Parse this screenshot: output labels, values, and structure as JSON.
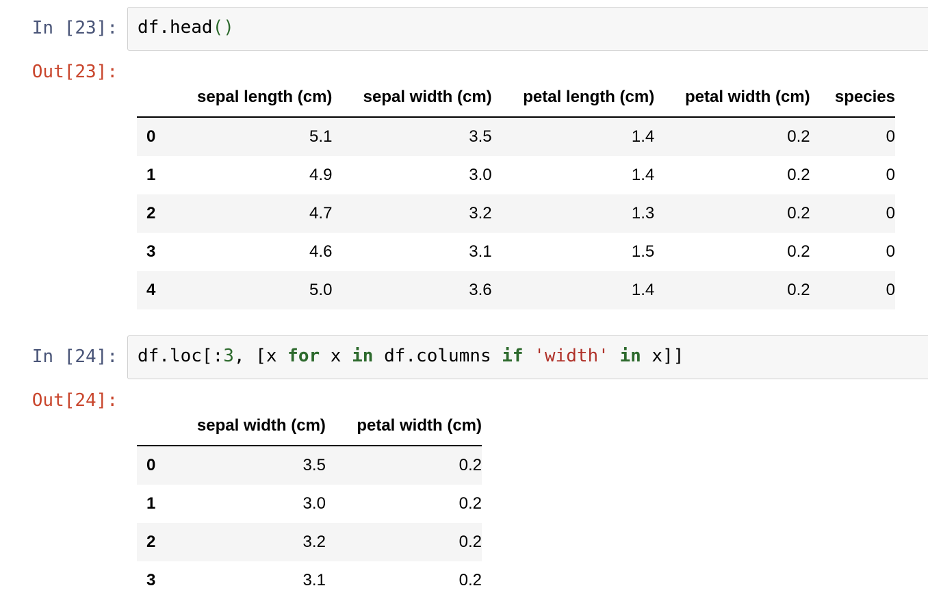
{
  "cells": [
    {
      "in_prompt": "In [23]:",
      "out_prompt": "Out[23]:",
      "code_tokens": [
        {
          "t": "df.head",
          "c": ""
        },
        {
          "t": "()",
          "c": "paren"
        }
      ],
      "table": {
        "columns": [
          "sepal length (cm)",
          "sepal width (cm)",
          "petal length (cm)",
          "petal width (cm)",
          "species"
        ],
        "rows": [
          {
            "index": "0",
            "values": [
              "5.1",
              "3.5",
              "1.4",
              "0.2",
              "0"
            ]
          },
          {
            "index": "1",
            "values": [
              "4.9",
              "3.0",
              "1.4",
              "0.2",
              "0"
            ]
          },
          {
            "index": "2",
            "values": [
              "4.7",
              "3.2",
              "1.3",
              "0.2",
              "0"
            ]
          },
          {
            "index": "3",
            "values": [
              "4.6",
              "3.1",
              "1.5",
              "0.2",
              "0"
            ]
          },
          {
            "index": "4",
            "values": [
              "5.0",
              "3.6",
              "1.4",
              "0.2",
              "0"
            ]
          }
        ]
      }
    },
    {
      "in_prompt": "In [24]:",
      "out_prompt": "Out[24]:",
      "code_tokens": [
        {
          "t": "df.loc[:",
          "c": ""
        },
        {
          "t": "3",
          "c": "num"
        },
        {
          "t": ", [x ",
          "c": ""
        },
        {
          "t": "for",
          "c": "kw"
        },
        {
          "t": " x ",
          "c": ""
        },
        {
          "t": "in",
          "c": "kw"
        },
        {
          "t": " df.columns ",
          "c": ""
        },
        {
          "t": "if",
          "c": "kw"
        },
        {
          "t": " ",
          "c": ""
        },
        {
          "t": "'width'",
          "c": "str"
        },
        {
          "t": " ",
          "c": ""
        },
        {
          "t": "in",
          "c": "kw"
        },
        {
          "t": " x]]",
          "c": ""
        }
      ],
      "table": {
        "columns": [
          "sepal width (cm)",
          "petal width (cm)"
        ],
        "rows": [
          {
            "index": "0",
            "values": [
              "3.5",
              "0.2"
            ]
          },
          {
            "index": "1",
            "values": [
              "3.0",
              "0.2"
            ]
          },
          {
            "index": "2",
            "values": [
              "3.2",
              "0.2"
            ]
          },
          {
            "index": "3",
            "values": [
              "3.1",
              "0.2"
            ]
          }
        ]
      }
    }
  ]
}
